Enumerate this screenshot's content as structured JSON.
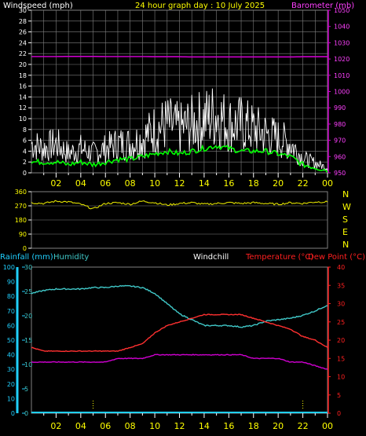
{
  "header": {
    "left_label": "Windspeed (mph)",
    "title": "24 hour graph day : 10 July 2025",
    "right_label": "Barometer (mb)"
  },
  "colors": {
    "background": "#000000",
    "grid": "#808080",
    "gust": "#ffffff",
    "average_wind": "#00ff00",
    "barometer": "#cc00cc",
    "direction": "#e0e000",
    "rainfall": "#00c0ff",
    "humidity": "#40c8c8",
    "temperature": "#ff3030",
    "dewpoint": "#d000d0",
    "header_yellow": "#ffff00",
    "header_magenta": "#ff40ff",
    "temp_axis": "#ff2020",
    "rain_axis": "#20d0ff",
    "hum_axis": "#40c8c8"
  },
  "chart_data": [
    {
      "type": "line",
      "name": "wind",
      "title": "24 hour graph day : 10 July 2025",
      "ylabel": "Windspeed (mph)",
      "y2label": "Barometer (mb)",
      "ylim": [
        0,
        30
      ],
      "y2lim": [
        950,
        1050
      ],
      "yticks": [
        0,
        2,
        4,
        6,
        8,
        10,
        12,
        14,
        16,
        18,
        20,
        22,
        24,
        26,
        28,
        30
      ],
      "y2ticks": [
        950,
        960,
        970,
        980,
        990,
        1000,
        1010,
        1020,
        1030,
        1040,
        1050
      ],
      "xticks": [
        "02",
        "04",
        "06",
        "08",
        "10",
        "12",
        "14",
        "16",
        "18",
        "20",
        "22",
        "00"
      ],
      "grid": true,
      "x_hours": [
        0,
        1,
        2,
        3,
        4,
        5,
        6,
        7,
        8,
        9,
        10,
        11,
        12,
        13,
        14,
        15,
        16,
        17,
        18,
        19,
        20,
        21,
        22,
        23,
        24
      ],
      "series": [
        {
          "role": "gust",
          "values": [
            6,
            5,
            6,
            4,
            5,
            4,
            5,
            6,
            6,
            7,
            9,
            10,
            9,
            10,
            11,
            12,
            10,
            10,
            9,
            8,
            7,
            6,
            3,
            2,
            1
          ]
        },
        {
          "role": "average",
          "values": [
            2,
            2,
            2,
            1.5,
            2,
            1.5,
            2,
            2.5,
            2.5,
            3,
            3.5,
            4,
            3.5,
            4,
            4.5,
            5,
            4.5,
            4,
            4,
            4,
            3.5,
            3,
            1.5,
            1,
            0.5
          ]
        },
        {
          "role": "barometer",
          "values": [
            1021.5,
            1021.5,
            1021.5,
            1021.6,
            1021.6,
            1021.6,
            1021.5,
            1021.5,
            1021.5,
            1021.5,
            1021.4,
            1021.4,
            1021.4,
            1021.3,
            1021.3,
            1021.3,
            1021.3,
            1021.3,
            1021.3,
            1021.3,
            1021.3,
            1021.3,
            1021.4,
            1021.4,
            1021.4
          ]
        }
      ]
    },
    {
      "type": "line",
      "name": "direction",
      "ylim": [
        0,
        360
      ],
      "yticks": [
        0,
        90,
        180,
        270,
        360
      ],
      "compass_labels": [
        "N",
        "W",
        "S",
        "E",
        "N"
      ],
      "xticks": [
        "02",
        "04",
        "06",
        "08",
        "10",
        "12",
        "14",
        "16",
        "18",
        "20",
        "22",
        "00"
      ],
      "x_hours": [
        0,
        1,
        2,
        3,
        4,
        5,
        6,
        7,
        8,
        9,
        10,
        11,
        12,
        13,
        14,
        15,
        16,
        17,
        18,
        19,
        20,
        21,
        22,
        23,
        24
      ],
      "values": [
        290,
        285,
        300,
        295,
        280,
        250,
        285,
        290,
        280,
        300,
        290,
        275,
        285,
        290,
        280,
        285,
        290,
        285,
        290,
        285,
        280,
        290,
        285,
        295,
        295
      ]
    },
    {
      "type": "line",
      "name": "temp_hum",
      "legend": [
        "Rainfall (mm)",
        "Humidity",
        "Windchill",
        "Temperature (°C)",
        "Dew Point (°C)"
      ],
      "humidity_ticks": [
        0,
        10,
        20,
        30,
        40,
        50,
        60,
        70,
        80,
        90,
        100
      ],
      "rain_ticks": [
        0,
        5,
        10,
        15,
        20,
        25,
        30
      ],
      "temp_ticks": [
        0,
        5,
        10,
        15,
        20,
        25,
        30,
        35,
        40
      ],
      "humidity_lim": [
        0,
        100
      ],
      "rain_lim": [
        0,
        30
      ],
      "temp_lim": [
        0,
        40
      ],
      "xticks": [
        "02",
        "04",
        "06",
        "08",
        "10",
        "12",
        "14",
        "16",
        "18",
        "20",
        "22",
        "00"
      ],
      "x_hours": [
        0,
        1,
        2,
        3,
        4,
        5,
        6,
        7,
        8,
        9,
        10,
        11,
        12,
        13,
        14,
        15,
        16,
        17,
        18,
        19,
        20,
        21,
        22,
        23,
        24
      ],
      "series": [
        {
          "name": "Humidity",
          "values": [
            82,
            84,
            85,
            85,
            85,
            86,
            86,
            87,
            87,
            86,
            82,
            75,
            68,
            64,
            60,
            60,
            60,
            59,
            60,
            63,
            64,
            65,
            67,
            70,
            74
          ]
        },
        {
          "name": "Temperature (°C)",
          "values": [
            18,
            17,
            17,
            17,
            17,
            17,
            17,
            17,
            18,
            19,
            22,
            24,
            25,
            26,
            27,
            27,
            27,
            27,
            26,
            25,
            24,
            23,
            21,
            20,
            18
          ]
        },
        {
          "name": "Dew Point (°C)",
          "values": [
            14,
            14,
            14,
            14,
            14,
            14,
            14,
            15,
            15,
            15,
            16,
            16,
            16,
            16,
            16,
            16,
            16,
            16,
            15,
            15,
            15,
            14,
            14,
            13,
            12
          ]
        },
        {
          "name": "Rainfall (mm)",
          "values": [
            0,
            0,
            0,
            0,
            0,
            0,
            0,
            0,
            0,
            0,
            0,
            0,
            0,
            0,
            0,
            0,
            0,
            0,
            0,
            0,
            0,
            0,
            0,
            0,
            0
          ]
        }
      ]
    }
  ]
}
